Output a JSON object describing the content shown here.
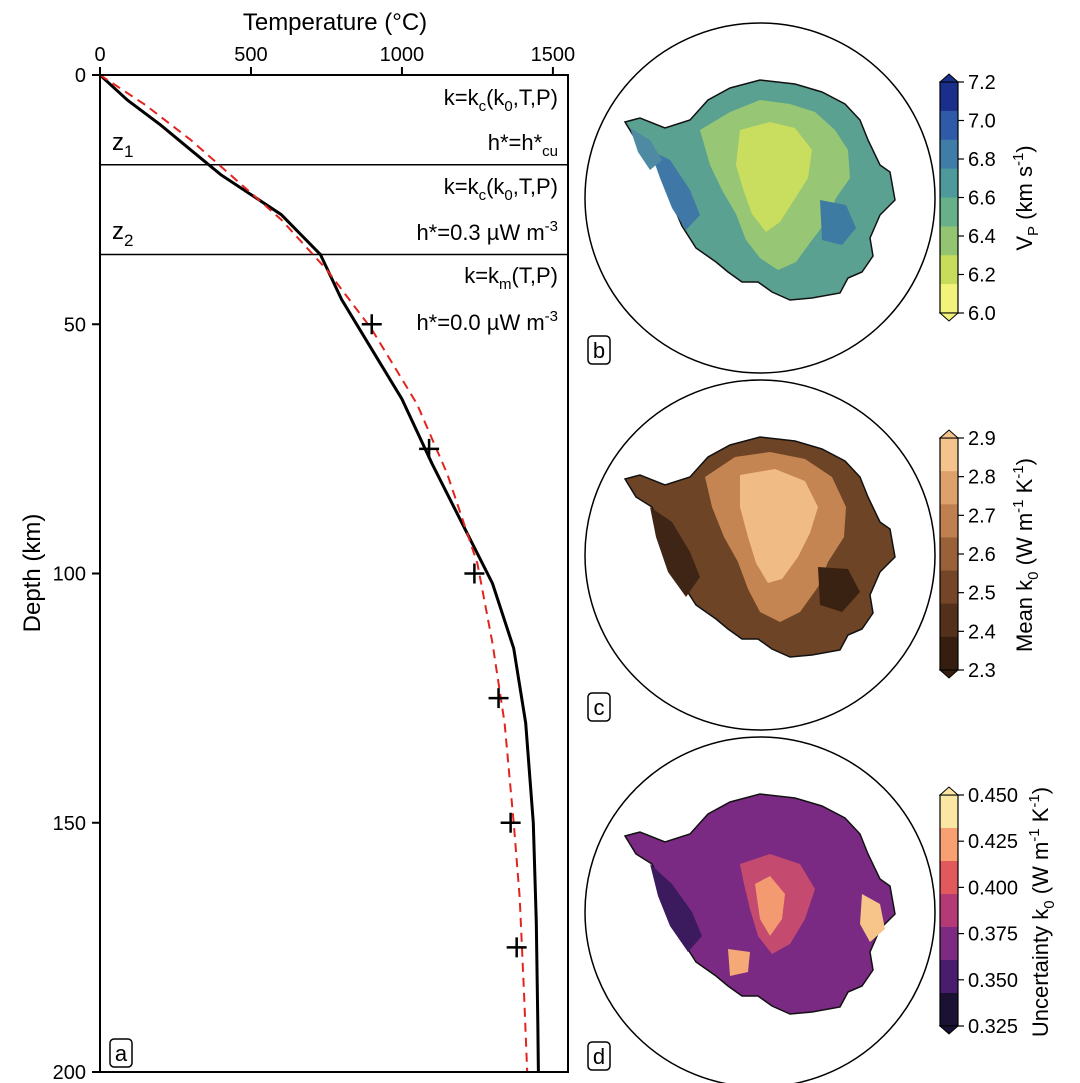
{
  "chart_data": [
    {
      "panel": "a",
      "type": "line",
      "xlabel": "Temperature (°C)",
      "ylabel": "Depth (km)",
      "xlim": [
        0,
        1550
      ],
      "ylim": [
        200,
        0
      ],
      "x_ticks": [
        0,
        500,
        1000,
        1500
      ],
      "y_ticks": [
        0,
        50,
        100,
        150,
        200
      ],
      "x_tick_labels": [
        "0",
        "500",
        "1000",
        "1500"
      ],
      "y_tick_labels": [
        "0",
        "50",
        "100",
        "150",
        "200"
      ],
      "layer_boundaries_km": [
        18,
        36
      ],
      "layer_labels": [
        {
          "main": "z",
          "sub": "1"
        },
        {
          "main": "z",
          "sub": "2"
        }
      ],
      "layer_annotations": [
        {
          "k_main": "k=k",
          "k_sub": "c",
          "k_args": "(k",
          "k_args_sub": "0",
          "k_args_end": ",T,P)",
          "h_text": "h*=h*",
          "h_sub": "cu",
          "h_sup": ""
        },
        {
          "k_main": "k=k",
          "k_sub": "c",
          "k_args": "(k",
          "k_args_sub": "0",
          "k_args_end": ",T,P)",
          "h_text": "h*=0.3 µW m",
          "h_sub": "",
          "h_sup": "-3"
        },
        {
          "k_main": "k=k",
          "k_sub": "m",
          "k_args": "(T,P)",
          "k_args_sub": "",
          "k_args_end": "",
          "h_text": "h*=0.0 µW m",
          "h_sub": "",
          "h_sup": "-3"
        }
      ],
      "series": [
        {
          "style": "solid-black",
          "x": [
            0,
            90,
            200,
            300,
            400,
            500,
            600,
            730,
            800,
            900,
            1000,
            1100,
            1200,
            1300,
            1370,
            1410,
            1435,
            1445,
            1450,
            1452
          ],
          "y": [
            0,
            5,
            10,
            15,
            20,
            24,
            28,
            36,
            45,
            55,
            65,
            78,
            90,
            102,
            115,
            130,
            150,
            170,
            190,
            200
          ]
        },
        {
          "style": "dashed-red",
          "x": [
            0,
            150,
            300,
            450,
            600,
            750,
            900,
            1050,
            1150,
            1250,
            1300,
            1340,
            1370,
            1390,
            1405,
            1415
          ],
          "y": [
            0,
            6,
            13,
            21,
            29,
            39,
            51,
            66,
            80,
            98,
            114,
            130,
            150,
            165,
            185,
            200
          ]
        },
        {
          "style": "plus-markers",
          "x": [
            900,
            1090,
            1240,
            1320,
            1360,
            1380
          ],
          "y": [
            50,
            75,
            100,
            125,
            150,
            175
          ]
        }
      ],
      "panel_label": "a"
    },
    {
      "panel": "b",
      "type": "heatmap",
      "colorbar_label": "V",
      "colorbar_label_sub": "P",
      "colorbar_label_units": "(km s",
      "colorbar_label_sup": "-1",
      "colorbar_label_end": ")",
      "colorbar_ticks": [
        "7.2",
        "7.0",
        "6.8",
        "6.6",
        "6.4",
        "6.2",
        "6.0"
      ],
      "colorbar_range": [
        6.0,
        7.2
      ],
      "colormap": [
        "#1a2f8c",
        "#2f5aa8",
        "#3f7da8",
        "#4e9a9a",
        "#67b08a",
        "#93c472",
        "#c8dc5c",
        "#f3f27a"
      ],
      "panel_label": "b"
    },
    {
      "panel": "c",
      "type": "heatmap",
      "colorbar_label": "Mean k",
      "colorbar_label_sub": "0",
      "colorbar_label_units": "(W m",
      "colorbar_label_sup": "-1",
      "colorbar_label_mid": " K",
      "colorbar_label_sup2": "-1",
      "colorbar_label_end": ")",
      "colorbar_ticks": [
        "2.9",
        "2.8",
        "2.7",
        "2.6",
        "2.5",
        "2.4",
        "2.3"
      ],
      "colorbar_range": [
        2.3,
        2.9
      ],
      "colormap": [
        "#f4c48c",
        "#dfa16c",
        "#bf7f4f",
        "#9a6038",
        "#744527",
        "#52301b",
        "#351d10"
      ],
      "panel_label": "c"
    },
    {
      "panel": "d",
      "type": "heatmap",
      "colorbar_label": "Uncertainty k",
      "colorbar_label_sub": "0",
      "colorbar_label_units": "(W m",
      "colorbar_label_sup": "-1",
      "colorbar_label_mid": " K",
      "colorbar_label_sup2": "-1",
      "colorbar_label_end": ")",
      "colorbar_ticks": [
        "0.450",
        "0.425",
        "0.400",
        "0.375",
        "0.350",
        "0.325"
      ],
      "colorbar_range": [
        0.325,
        0.45
      ],
      "colormap": [
        "#fbe7a4",
        "#f8a071",
        "#e2595d",
        "#b33a76",
        "#7c2a82",
        "#481d6e",
        "#1b1233"
      ],
      "panel_label": "d"
    }
  ]
}
